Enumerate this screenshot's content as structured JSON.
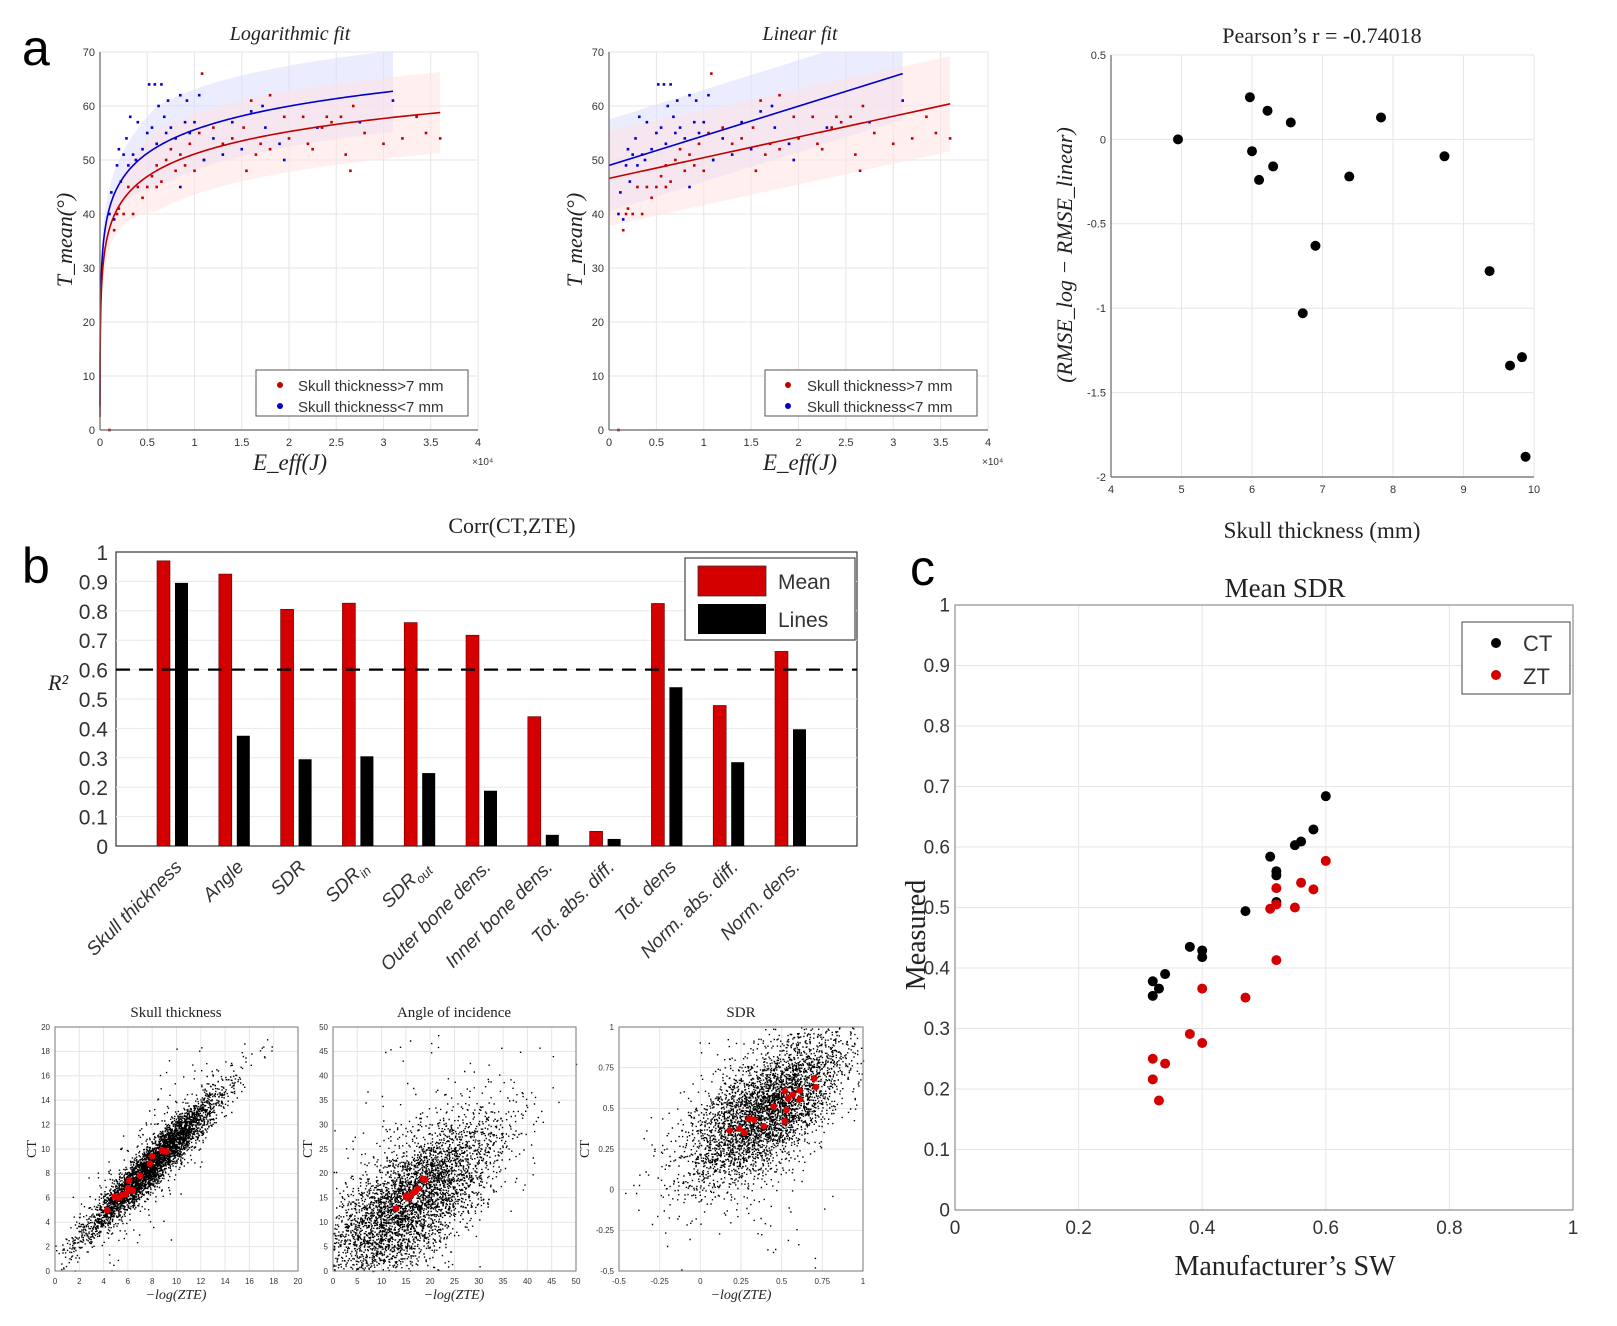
{
  "panels": {
    "a": {
      "letter": "a",
      "log_fit": {
        "title": "Logarithmic fit",
        "xlabel": "E_eff(J)",
        "ylabel": "T_mean(°)",
        "x_exponent": "×10⁴",
        "legend": [
          "Skull thickness>7 mm",
          "Skull thickness<7 mm"
        ]
      },
      "linear_fit": {
        "title": "Linear fit",
        "xlabel": "E_eff(J)",
        "ylabel": "T_mean(°)",
        "x_exponent": "×10⁴",
        "legend": [
          "Skull thickness>7 mm",
          "Skull thickness<7 mm"
        ]
      },
      "pearson": {
        "title": "Pearson’s r = -0.74018",
        "xlabel": "Skull thickness (mm)",
        "ylabel": "(RMSE_log − RMSE_linear)"
      }
    },
    "b": {
      "letter": "b",
      "bar_title": "Corr(CT,ZTE)",
      "ylabel": "R²",
      "legend": [
        "Mean",
        "Lines"
      ],
      "sub_titles": [
        "Skull thickness",
        "Angle of incidence",
        "SDR"
      ],
      "sub_xlabel": "−log(ZTE)",
      "sub_ylabel": "CT"
    },
    "c": {
      "letter": "c",
      "title": "Mean SDR",
      "xlabel": "Manufacturer’s SW",
      "ylabel": "Measured",
      "legend": [
        "CT",
        "ZT"
      ]
    }
  },
  "colors": {
    "thick_red": "#c00000",
    "thin_blue": "#0000cc",
    "bar_mean": "#d40000",
    "bar_lines": "#000000",
    "band_blue": "#dcdcff",
    "band_red": "#ffe1e1"
  },
  "chart_data": [
    {
      "id": "log_fit",
      "type": "scatter",
      "title": "Logarithmic fit",
      "xlabel": "E_eff (J) ×10⁴",
      "ylabel": "T_mean (°)",
      "xlim": [
        0,
        4
      ],
      "ylim": [
        0,
        70
      ],
      "xticks": [
        0,
        0.5,
        1,
        1.5,
        2,
        2.5,
        3,
        3.5,
        4
      ],
      "yticks": [
        0,
        10,
        20,
        30,
        40,
        50,
        60,
        70
      ],
      "grid": true,
      "legend_position": "bottom-right",
      "fits": [
        {
          "name": "Skull thickness<7 mm",
          "kind": "log",
          "a": 55.6,
          "b": 6.3,
          "x_end": 3.1,
          "band": 7.5
        },
        {
          "name": "Skull thickness>7 mm",
          "kind": "log",
          "a": 51.1,
          "b": 6.0,
          "x_end": 3.6,
          "band": 7.5
        }
      ],
      "series": [
        {
          "name": "Skull thickness>7 mm",
          "points": [
            [
              0.1,
              0
            ],
            [
              0.15,
              37
            ],
            [
              0.18,
              40
            ],
            [
              0.2,
              41
            ],
            [
              0.25,
              40
            ],
            [
              0.3,
              45
            ],
            [
              0.35,
              40
            ],
            [
              0.4,
              45
            ],
            [
              0.45,
              43
            ],
            [
              0.5,
              45
            ],
            [
              0.55,
              47
            ],
            [
              0.6,
              45
            ],
            [
              0.6,
              49
            ],
            [
              0.65,
              46
            ],
            [
              0.7,
              50
            ],
            [
              0.75,
              52
            ],
            [
              0.8,
              48
            ],
            [
              0.85,
              51
            ],
            [
              0.9,
              49
            ],
            [
              0.95,
              53
            ],
            [
              1.0,
              48
            ],
            [
              1.05,
              55
            ],
            [
              1.08,
              66
            ],
            [
              1.1,
              50
            ],
            [
              1.2,
              56
            ],
            [
              1.3,
              53
            ],
            [
              1.4,
              54
            ],
            [
              1.52,
              56
            ],
            [
              1.55,
              48
            ],
            [
              1.6,
              61
            ],
            [
              1.65,
              51
            ],
            [
              1.7,
              53
            ],
            [
              1.8,
              62
            ],
            [
              1.8,
              52
            ],
            [
              1.95,
              58
            ],
            [
              2.0,
              54
            ],
            [
              2.15,
              58
            ],
            [
              2.2,
              53
            ],
            [
              2.25,
              52
            ],
            [
              2.35,
              56
            ],
            [
              2.4,
              58
            ],
            [
              2.45,
              57
            ],
            [
              2.55,
              58
            ],
            [
              2.6,
              51
            ],
            [
              2.65,
              48
            ],
            [
              2.68,
              60
            ],
            [
              2.8,
              55
            ],
            [
              3.0,
              53
            ],
            [
              3.2,
              54
            ],
            [
              3.35,
              58
            ],
            [
              3.45,
              55
            ],
            [
              3.6,
              54
            ]
          ]
        },
        {
          "name": "Skull thickness<7 mm",
          "points": [
            [
              0.1,
              40
            ],
            [
              0.12,
              44
            ],
            [
              0.15,
              39
            ],
            [
              0.18,
              49
            ],
            [
              0.2,
              52
            ],
            [
              0.22,
              46
            ],
            [
              0.25,
              51
            ],
            [
              0.28,
              54
            ],
            [
              0.3,
              49
            ],
            [
              0.32,
              58
            ],
            [
              0.35,
              51
            ],
            [
              0.38,
              50
            ],
            [
              0.4,
              57
            ],
            [
              0.45,
              52
            ],
            [
              0.5,
              55
            ],
            [
              0.52,
              64
            ],
            [
              0.55,
              56
            ],
            [
              0.58,
              64
            ],
            [
              0.6,
              53
            ],
            [
              0.62,
              60
            ],
            [
              0.65,
              64
            ],
            [
              0.68,
              58
            ],
            [
              0.7,
              55
            ],
            [
              0.72,
              61
            ],
            [
              0.75,
              56
            ],
            [
              0.8,
              54
            ],
            [
              0.85,
              62
            ],
            [
              0.85,
              45
            ],
            [
              0.9,
              57
            ],
            [
              0.92,
              61
            ],
            [
              0.95,
              55
            ],
            [
              1.0,
              57
            ],
            [
              1.05,
              62
            ],
            [
              1.1,
              50
            ],
            [
              1.2,
              54
            ],
            [
              1.3,
              51
            ],
            [
              1.4,
              57
            ],
            [
              1.5,
              52
            ],
            [
              1.6,
              59
            ],
            [
              1.72,
              60
            ],
            [
              1.75,
              56
            ],
            [
              1.9,
              53
            ],
            [
              1.95,
              50
            ],
            [
              2.3,
              56
            ],
            [
              2.75,
              57
            ],
            [
              3.1,
              61
            ]
          ]
        }
      ]
    },
    {
      "id": "linear_fit",
      "type": "scatter",
      "title": "Linear fit",
      "xlabel": "E_eff (J) ×10⁴",
      "ylabel": "T_mean (°)",
      "xlim": [
        0,
        4
      ],
      "ylim": [
        0,
        70
      ],
      "xticks": [
        0,
        0.5,
        1,
        1.5,
        2,
        2.5,
        3,
        3.5,
        4
      ],
      "yticks": [
        0,
        10,
        20,
        30,
        40,
        50,
        60,
        70
      ],
      "grid": true,
      "legend_position": "bottom-right",
      "fits": [
        {
          "name": "Skull thickness<7 mm",
          "kind": "linear",
          "y0": 49.0,
          "y1": 66.0,
          "x_end": 3.1,
          "band": 8.5
        },
        {
          "name": "Skull thickness>7 mm",
          "kind": "linear",
          "y0": 46.6,
          "y1": 60.4,
          "x_end": 3.6,
          "band": 8.8
        }
      ],
      "series_ref": "log_fit"
    },
    {
      "id": "pearson",
      "type": "scatter",
      "title": "Pearson’s r = -0.74018",
      "xlabel": "Skull thickness (mm)",
      "ylabel": "(RMSE_log − RMSE_linear)",
      "xlim": [
        4,
        10
      ],
      "ylim": [
        -2,
        0.5
      ],
      "xticks": [
        4,
        5,
        6,
        7,
        8,
        9,
        10
      ],
      "yticks": [
        -2,
        -1.5,
        -1,
        -0.5,
        0,
        0.5
      ],
      "grid": true,
      "points": [
        [
          4.95,
          0.0
        ],
        [
          5.97,
          0.25
        ],
        [
          6.0,
          -0.07
        ],
        [
          6.1,
          -0.24
        ],
        [
          6.22,
          0.17
        ],
        [
          6.3,
          -0.16
        ],
        [
          6.55,
          0.1
        ],
        [
          6.72,
          -1.03
        ],
        [
          6.9,
          -0.63
        ],
        [
          7.38,
          -0.22
        ],
        [
          7.83,
          0.13
        ],
        [
          8.73,
          -0.1
        ],
        [
          9.37,
          -0.78
        ],
        [
          9.66,
          -1.34
        ],
        [
          9.83,
          -1.29
        ],
        [
          9.88,
          -1.88
        ]
      ]
    },
    {
      "id": "corr_bars",
      "type": "bar",
      "title": "Corr(CT,ZTE)",
      "ylabel": "R²",
      "ylim": [
        0,
        1
      ],
      "yticks": [
        0,
        0.1,
        0.2,
        0.3,
        0.4,
        0.5,
        0.6,
        0.7,
        0.8,
        0.9,
        1
      ],
      "threshold": 0.6,
      "legend_position": "top-right",
      "categories": [
        "Skull thickness",
        "Angle",
        "SDR",
        "SDR_in",
        "SDR_out",
        "Outer bone dens.",
        "Inner bone dens.",
        "Tot. abs. diff.",
        "Tot. dens",
        "Norm. abs. diff.",
        "Norm. dens."
      ],
      "series": [
        {
          "name": "Mean",
          "values": [
            0.97,
            0.925,
            0.805,
            0.826,
            0.76,
            0.717,
            0.44,
            0.05,
            0.825,
            0.478,
            0.662
          ]
        },
        {
          "name": "Lines",
          "values": [
            0.895,
            0.375,
            0.295,
            0.305,
            0.248,
            0.188,
            0.038,
            0.024,
            0.54,
            0.285,
            0.397
          ]
        }
      ]
    },
    {
      "id": "sub_skull",
      "type": "scatter",
      "title": "Skull thickness",
      "xlabel": "−log(ZTE)",
      "ylabel": "CT",
      "xlim": [
        0,
        20
      ],
      "ylim": [
        0,
        20
      ],
      "xticks": [
        0,
        2,
        4,
        6,
        8,
        10,
        12,
        14,
        16,
        18,
        20
      ],
      "yticks": [
        0,
        2,
        4,
        6,
        8,
        10,
        12,
        14,
        16,
        18,
        20
      ],
      "cloud": {
        "slope": 1.0,
        "intercept": 0.8,
        "xmean": 8,
        "xsd": 2.8,
        "noise": 0.9
      },
      "highlight": [
        [
          4.3,
          5.0
        ],
        [
          4.9,
          6.1
        ],
        [
          5.2,
          6.0
        ],
        [
          5.5,
          6.2
        ],
        [
          5.8,
          6.3
        ],
        [
          6.0,
          6.8
        ],
        [
          6.1,
          7.4
        ],
        [
          6.2,
          6.6
        ],
        [
          6.4,
          6.6
        ],
        [
          7.0,
          7.8
        ],
        [
          7.8,
          8.8
        ],
        [
          8.0,
          9.4
        ],
        [
          8.8,
          9.9
        ],
        [
          9.0,
          9.8
        ],
        [
          9.2,
          9.8
        ]
      ]
    },
    {
      "id": "sub_angle",
      "type": "scatter",
      "title": "Angle of incidence",
      "xlabel": "−log(ZTE)",
      "ylabel": "CT",
      "xlim": [
        0,
        50
      ],
      "ylim": [
        0,
        50
      ],
      "xticks": [
        0,
        5,
        10,
        15,
        20,
        25,
        30,
        35,
        40,
        45,
        50
      ],
      "yticks": [
        0,
        5,
        10,
        15,
        20,
        25,
        30,
        35,
        40,
        45,
        50
      ],
      "cloud": {
        "slope": 0.65,
        "intercept": 4,
        "xmean": 16,
        "xsd": 9,
        "noise": 6
      },
      "highlight": [
        [
          13,
          12.8
        ],
        [
          15,
          15.4
        ],
        [
          15.6,
          15.0
        ],
        [
          16,
          15.5
        ],
        [
          16.5,
          16.0
        ],
        [
          17,
          16.3
        ],
        [
          17.5,
          16.9
        ],
        [
          18.5,
          18.9
        ],
        [
          19,
          18.7
        ]
      ]
    },
    {
      "id": "sub_sdr",
      "type": "scatter",
      "title": "SDR",
      "xlabel": "−log(ZTE)",
      "ylabel": "CT",
      "xlim": [
        -0.5,
        1
      ],
      "ylim": [
        -0.5,
        1
      ],
      "xticks": [
        -0.5,
        -0.25,
        0,
        0.25,
        0.5,
        0.75,
        1
      ],
      "yticks": [
        -0.5,
        -0.25,
        0,
        0.25,
        0.5,
        0.75,
        1
      ],
      "cloud": {
        "slope": 0.6,
        "intercept": 0.25,
        "xmean": 0.4,
        "xsd": 0.25,
        "noise": 0.17
      },
      "highlight": [
        [
          0.18,
          0.365
        ],
        [
          0.24,
          0.375
        ],
        [
          0.27,
          0.35
        ],
        [
          0.3,
          0.435
        ],
        [
          0.33,
          0.43
        ],
        [
          0.39,
          0.39
        ],
        [
          0.45,
          0.51
        ],
        [
          0.52,
          0.605
        ],
        [
          0.52,
          0.42
        ],
        [
          0.53,
          0.49
        ],
        [
          0.54,
          0.56
        ],
        [
          0.57,
          0.585
        ],
        [
          0.61,
          0.61
        ],
        [
          0.61,
          0.555
        ],
        [
          0.7,
          0.685
        ],
        [
          0.71,
          0.63
        ]
      ]
    },
    {
      "id": "mean_sdr",
      "type": "scatter",
      "title": "Mean SDR",
      "xlabel": "Manufacturer’s SW",
      "ylabel": "Measured",
      "xlim": [
        0,
        1
      ],
      "ylim": [
        0,
        1
      ],
      "xticks": [
        0,
        0.2,
        0.4,
        0.6,
        0.8,
        1
      ],
      "yticks": [
        0,
        0.1,
        0.2,
        0.3,
        0.4,
        0.5,
        0.6,
        0.7,
        0.8,
        0.9,
        1
      ],
      "grid": true,
      "legend_position": "top-right",
      "series": [
        {
          "name": "CT",
          "points": [
            [
              0.32,
              0.378
            ],
            [
              0.32,
              0.354
            ],
            [
              0.33,
              0.366
            ],
            [
              0.34,
              0.39
            ],
            [
              0.38,
              0.435
            ],
            [
              0.4,
              0.429
            ],
            [
              0.4,
              0.418
            ],
            [
              0.47,
              0.494
            ],
            [
              0.51,
              0.584
            ],
            [
              0.52,
              0.56
            ],
            [
              0.52,
              0.553
            ],
            [
              0.52,
              0.509
            ],
            [
              0.55,
              0.603
            ],
            [
              0.56,
              0.609
            ],
            [
              0.58,
              0.629
            ],
            [
              0.6,
              0.684
            ]
          ]
        },
        {
          "name": "ZT",
          "points": [
            [
              0.32,
              0.25
            ],
            [
              0.32,
              0.216
            ],
            [
              0.33,
              0.181
            ],
            [
              0.34,
              0.242
            ],
            [
              0.38,
              0.291
            ],
            [
              0.4,
              0.366
            ],
            [
              0.4,
              0.276
            ],
            [
              0.47,
              0.351
            ],
            [
              0.51,
              0.498
            ],
            [
              0.52,
              0.532
            ],
            [
              0.52,
              0.505
            ],
            [
              0.52,
              0.413
            ],
            [
              0.55,
              0.5
            ],
            [
              0.56,
              0.541
            ],
            [
              0.58,
              0.53
            ],
            [
              0.6,
              0.577
            ]
          ]
        }
      ]
    }
  ]
}
